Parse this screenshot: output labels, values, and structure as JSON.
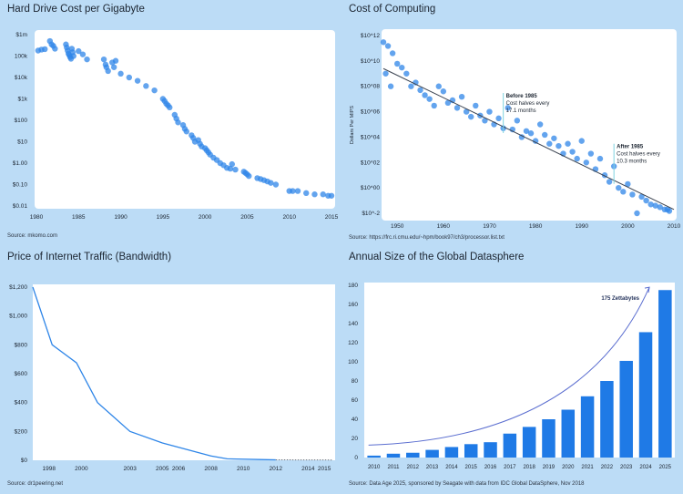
{
  "colors": {
    "point": "#2f86e8",
    "line": "#2f86e8",
    "bar": "#1f7ae6",
    "trend": "#3a4250",
    "curve": "#5b6ed0"
  },
  "chart_data": [
    {
      "id": "hdd",
      "type": "scatter",
      "title": "Hard Drive Cost per Gigabyte",
      "source": "Source: mkomo.com",
      "ylog": true,
      "xlim": [
        1980,
        2015
      ],
      "ylim": [
        0.01,
        1000000
      ],
      "xticks": [
        1980,
        1985,
        1990,
        1995,
        2000,
        2005,
        2010,
        2015
      ],
      "yticks": [
        {
          "v": 1000000,
          "label": "$1m"
        },
        {
          "v": 100000,
          "label": "100k"
        },
        {
          "v": 10000,
          "label": "$10k"
        },
        {
          "v": 1000,
          "label": "$1k"
        },
        {
          "v": 100,
          "label": "$100"
        },
        {
          "v": 10,
          "label": "$10"
        },
        {
          "v": 1,
          "label": "$1.00"
        },
        {
          "v": 0.1,
          "label": "$0.10"
        },
        {
          "v": 0.01,
          "label": "$0.01"
        }
      ],
      "points": [
        [
          1980.2,
          180000
        ],
        [
          1980.6,
          200000
        ],
        [
          1981,
          210000
        ],
        [
          1981.6,
          500000
        ],
        [
          1981.8,
          350000
        ],
        [
          1982,
          300000
        ],
        [
          1982.2,
          220000
        ],
        [
          1983.5,
          350000
        ],
        [
          1983.6,
          250000
        ],
        [
          1983.7,
          180000
        ],
        [
          1983.8,
          130000
        ],
        [
          1983.9,
          110000
        ],
        [
          1984,
          90000
        ],
        [
          1984.1,
          75000
        ],
        [
          1984.2,
          220000
        ],
        [
          1984.3,
          150000
        ],
        [
          1984.4,
          100000
        ],
        [
          1985,
          170000
        ],
        [
          1985.5,
          120000
        ],
        [
          1986,
          70000
        ],
        [
          1988,
          70000
        ],
        [
          1988.2,
          40000
        ],
        [
          1988.3,
          30000
        ],
        [
          1988.5,
          20000
        ],
        [
          1989,
          50000
        ],
        [
          1989.2,
          30000
        ],
        [
          1989.4,
          60000
        ],
        [
          1990,
          15000
        ],
        [
          1991,
          10000
        ],
        [
          1992,
          7000
        ],
        [
          1993,
          4000
        ],
        [
          1994,
          2500
        ],
        [
          1995,
          1000
        ],
        [
          1995.2,
          800
        ],
        [
          1995.4,
          600
        ],
        [
          1995.6,
          500
        ],
        [
          1995.8,
          400
        ],
        [
          1996.4,
          180
        ],
        [
          1996.6,
          120
        ],
        [
          1996.8,
          80
        ],
        [
          1997.4,
          60
        ],
        [
          1997.6,
          40
        ],
        [
          1997.8,
          30
        ],
        [
          1998.4,
          20
        ],
        [
          1998.6,
          15
        ],
        [
          1998.8,
          10
        ],
        [
          1999.2,
          12
        ],
        [
          1999.4,
          8
        ],
        [
          1999.6,
          6
        ],
        [
          2000,
          5
        ],
        [
          2000.2,
          4
        ],
        [
          2000.4,
          3.2
        ],
        [
          2000.6,
          2.5
        ],
        [
          2001,
          1.8
        ],
        [
          2001.4,
          1.4
        ],
        [
          2001.8,
          1.0
        ],
        [
          2002.2,
          0.8
        ],
        [
          2002.6,
          0.6
        ],
        [
          2003,
          0.55
        ],
        [
          2003.2,
          0.9
        ],
        [
          2003.6,
          0.5
        ],
        [
          2004.6,
          0.4
        ],
        [
          2004.8,
          0.35
        ],
        [
          2005,
          0.3
        ],
        [
          2005.2,
          0.25
        ],
        [
          2006.2,
          0.2
        ],
        [
          2006.6,
          0.18
        ],
        [
          2007,
          0.16
        ],
        [
          2007.4,
          0.14
        ],
        [
          2007.8,
          0.12
        ],
        [
          2008.4,
          0.1
        ],
        [
          2010,
          0.05
        ],
        [
          2010.4,
          0.05
        ],
        [
          2011,
          0.05
        ],
        [
          2012,
          0.04
        ],
        [
          2013,
          0.035
        ],
        [
          2014,
          0.035
        ],
        [
          2014.6,
          0.03
        ],
        [
          2015,
          0.03
        ]
      ]
    },
    {
      "id": "computing",
      "type": "scatter",
      "title": "Cost of Computing",
      "source": "Source: https://frc.ri.cmu.edu/~hpm/book97/ch3/processor.list.txt",
      "ylabel": "Dollars Per MIPS",
      "ylog": true,
      "xlim": [
        1947,
        2010
      ],
      "ylim": [
        0.01,
        1000000000000
      ],
      "xticks": [
        1950,
        1960,
        1970,
        1980,
        1990,
        2000,
        2010
      ],
      "yticks": [
        {
          "v": 1000000000000,
          "label": "$10^12"
        },
        {
          "v": 10000000000,
          "label": "$10^10"
        },
        {
          "v": 100000000,
          "label": "$10^08"
        },
        {
          "v": 1000000,
          "label": "$10^06"
        },
        {
          "v": 10000,
          "label": "$10^04"
        },
        {
          "v": 100,
          "label": "$10^02"
        },
        {
          "v": 1,
          "label": "$10^00"
        },
        {
          "v": 0.01,
          "label": "$10^-2"
        }
      ],
      "trend": [
        [
          1947,
          2500000000
        ],
        [
          2010,
          0.02
        ]
      ],
      "annotations": [
        {
          "x": 1973,
          "y": 30000000,
          "title": "Before 1985",
          "lines": [
            "Cost halves every",
            "17.1 months"
          ]
        },
        {
          "x": 1997,
          "y": 3000,
          "title": "After 1985",
          "lines": [
            "Cost halves every",
            "10.3 months"
          ]
        }
      ],
      "points": [
        [
          1947,
          300000000000
        ],
        [
          1947.5,
          1000000000
        ],
        [
          1948,
          150000000000
        ],
        [
          1948.6,
          100000000
        ],
        [
          1949,
          40000000000
        ],
        [
          1950,
          6000000000
        ],
        [
          1951,
          3000000000
        ],
        [
          1952,
          1000000000
        ],
        [
          1953,
          100000000
        ],
        [
          1954,
          200000000
        ],
        [
          1955,
          50000000
        ],
        [
          1956,
          20000000
        ],
        [
          1957,
          10000000
        ],
        [
          1958,
          3000000
        ],
        [
          1959,
          100000000
        ],
        [
          1960,
          40000000
        ],
        [
          1961,
          5000000
        ],
        [
          1962,
          8000000
        ],
        [
          1963,
          2000000
        ],
        [
          1964,
          15000000
        ],
        [
          1965,
          1000000
        ],
        [
          1966,
          400000
        ],
        [
          1967,
          3000000
        ],
        [
          1968,
          500000
        ],
        [
          1969,
          200000
        ],
        [
          1970,
          1000000
        ],
        [
          1971,
          100000
        ],
        [
          1972,
          300000
        ],
        [
          1973,
          50000
        ],
        [
          1974,
          2000000
        ],
        [
          1975,
          40000
        ],
        [
          1976,
          200000
        ],
        [
          1977,
          10000
        ],
        [
          1978,
          30000
        ],
        [
          1979,
          20000
        ],
        [
          1980,
          5000
        ],
        [
          1981,
          100000
        ],
        [
          1982,
          15000
        ],
        [
          1983,
          3000
        ],
        [
          1984,
          8000
        ],
        [
          1985,
          2000
        ],
        [
          1986,
          500
        ],
        [
          1987,
          3000
        ],
        [
          1988,
          700
        ],
        [
          1989,
          200
        ],
        [
          1990,
          5000
        ],
        [
          1991,
          100
        ],
        [
          1992,
          500
        ],
        [
          1993,
          30
        ],
        [
          1994,
          200
        ],
        [
          1995,
          10
        ],
        [
          1996,
          3
        ],
        [
          1997,
          50
        ],
        [
          1998,
          1
        ],
        [
          1999,
          0.5
        ],
        [
          2000,
          2
        ],
        [
          2001,
          0.3
        ],
        [
          2002,
          0.01
        ],
        [
          2003,
          0.2
        ],
        [
          2004,
          0.1
        ],
        [
          2005,
          0.05
        ],
        [
          2006,
          0.04
        ],
        [
          2007,
          0.03
        ],
        [
          2008,
          0.02
        ],
        [
          2008.6,
          0.02
        ],
        [
          2009,
          0.015
        ]
      ]
    },
    {
      "id": "traffic",
      "type": "line",
      "title": "Price of Internet Traffic (Bandwidth)",
      "source": "Source: dr1peering.net",
      "xlim": [
        1997,
        2015.5
      ],
      "ylim": [
        0,
        1200
      ],
      "xticks": [
        1998,
        2000,
        2003,
        2005,
        2006,
        2008,
        2010,
        2012,
        2014,
        2015
      ],
      "yticks": [
        {
          "v": 1200,
          "label": "$1,200"
        },
        {
          "v": 1000,
          "label": "$1,000"
        },
        {
          "v": 800,
          "label": "$800"
        },
        {
          "v": 600,
          "label": "$600"
        },
        {
          "v": 400,
          "label": "$400"
        },
        {
          "v": 200,
          "label": "$200"
        },
        {
          "v": 0,
          "label": "$0"
        }
      ],
      "points": [
        [
          1997,
          1200
        ],
        [
          1998.2,
          800
        ],
        [
          1999.7,
          675
        ],
        [
          2001,
          400
        ],
        [
          2003,
          200
        ],
        [
          2005,
          120
        ],
        [
          2006,
          90
        ],
        [
          2007,
          60
        ],
        [
          2008,
          30
        ],
        [
          2009,
          10
        ],
        [
          2011,
          5
        ],
        [
          2012,
          3
        ]
      ],
      "dashed_points": [
        [
          2012,
          3
        ],
        [
          2015.5,
          2
        ]
      ]
    },
    {
      "id": "datasphere",
      "type": "bar",
      "title": "Annual Size of the Global Datasphere",
      "source": "Source: Data Age 2025, sponsored by Seagate with data from IDC Global DataSphere, Nov 2018",
      "ylim": [
        0,
        180
      ],
      "yticks": [
        0,
        20,
        40,
        60,
        80,
        100,
        120,
        140,
        160,
        180
      ],
      "categories": [
        "2010",
        "2011",
        "2012",
        "2013",
        "2014",
        "2015",
        "2016",
        "2017",
        "2018",
        "2019",
        "2020",
        "2021",
        "2022",
        "2023",
        "2024",
        "2025"
      ],
      "values": [
        2,
        4,
        5,
        8,
        11,
        14,
        16,
        25,
        32,
        40,
        50,
        64,
        80,
        101,
        131,
        175
      ],
      "annotation": "175 Zettabytes"
    }
  ]
}
